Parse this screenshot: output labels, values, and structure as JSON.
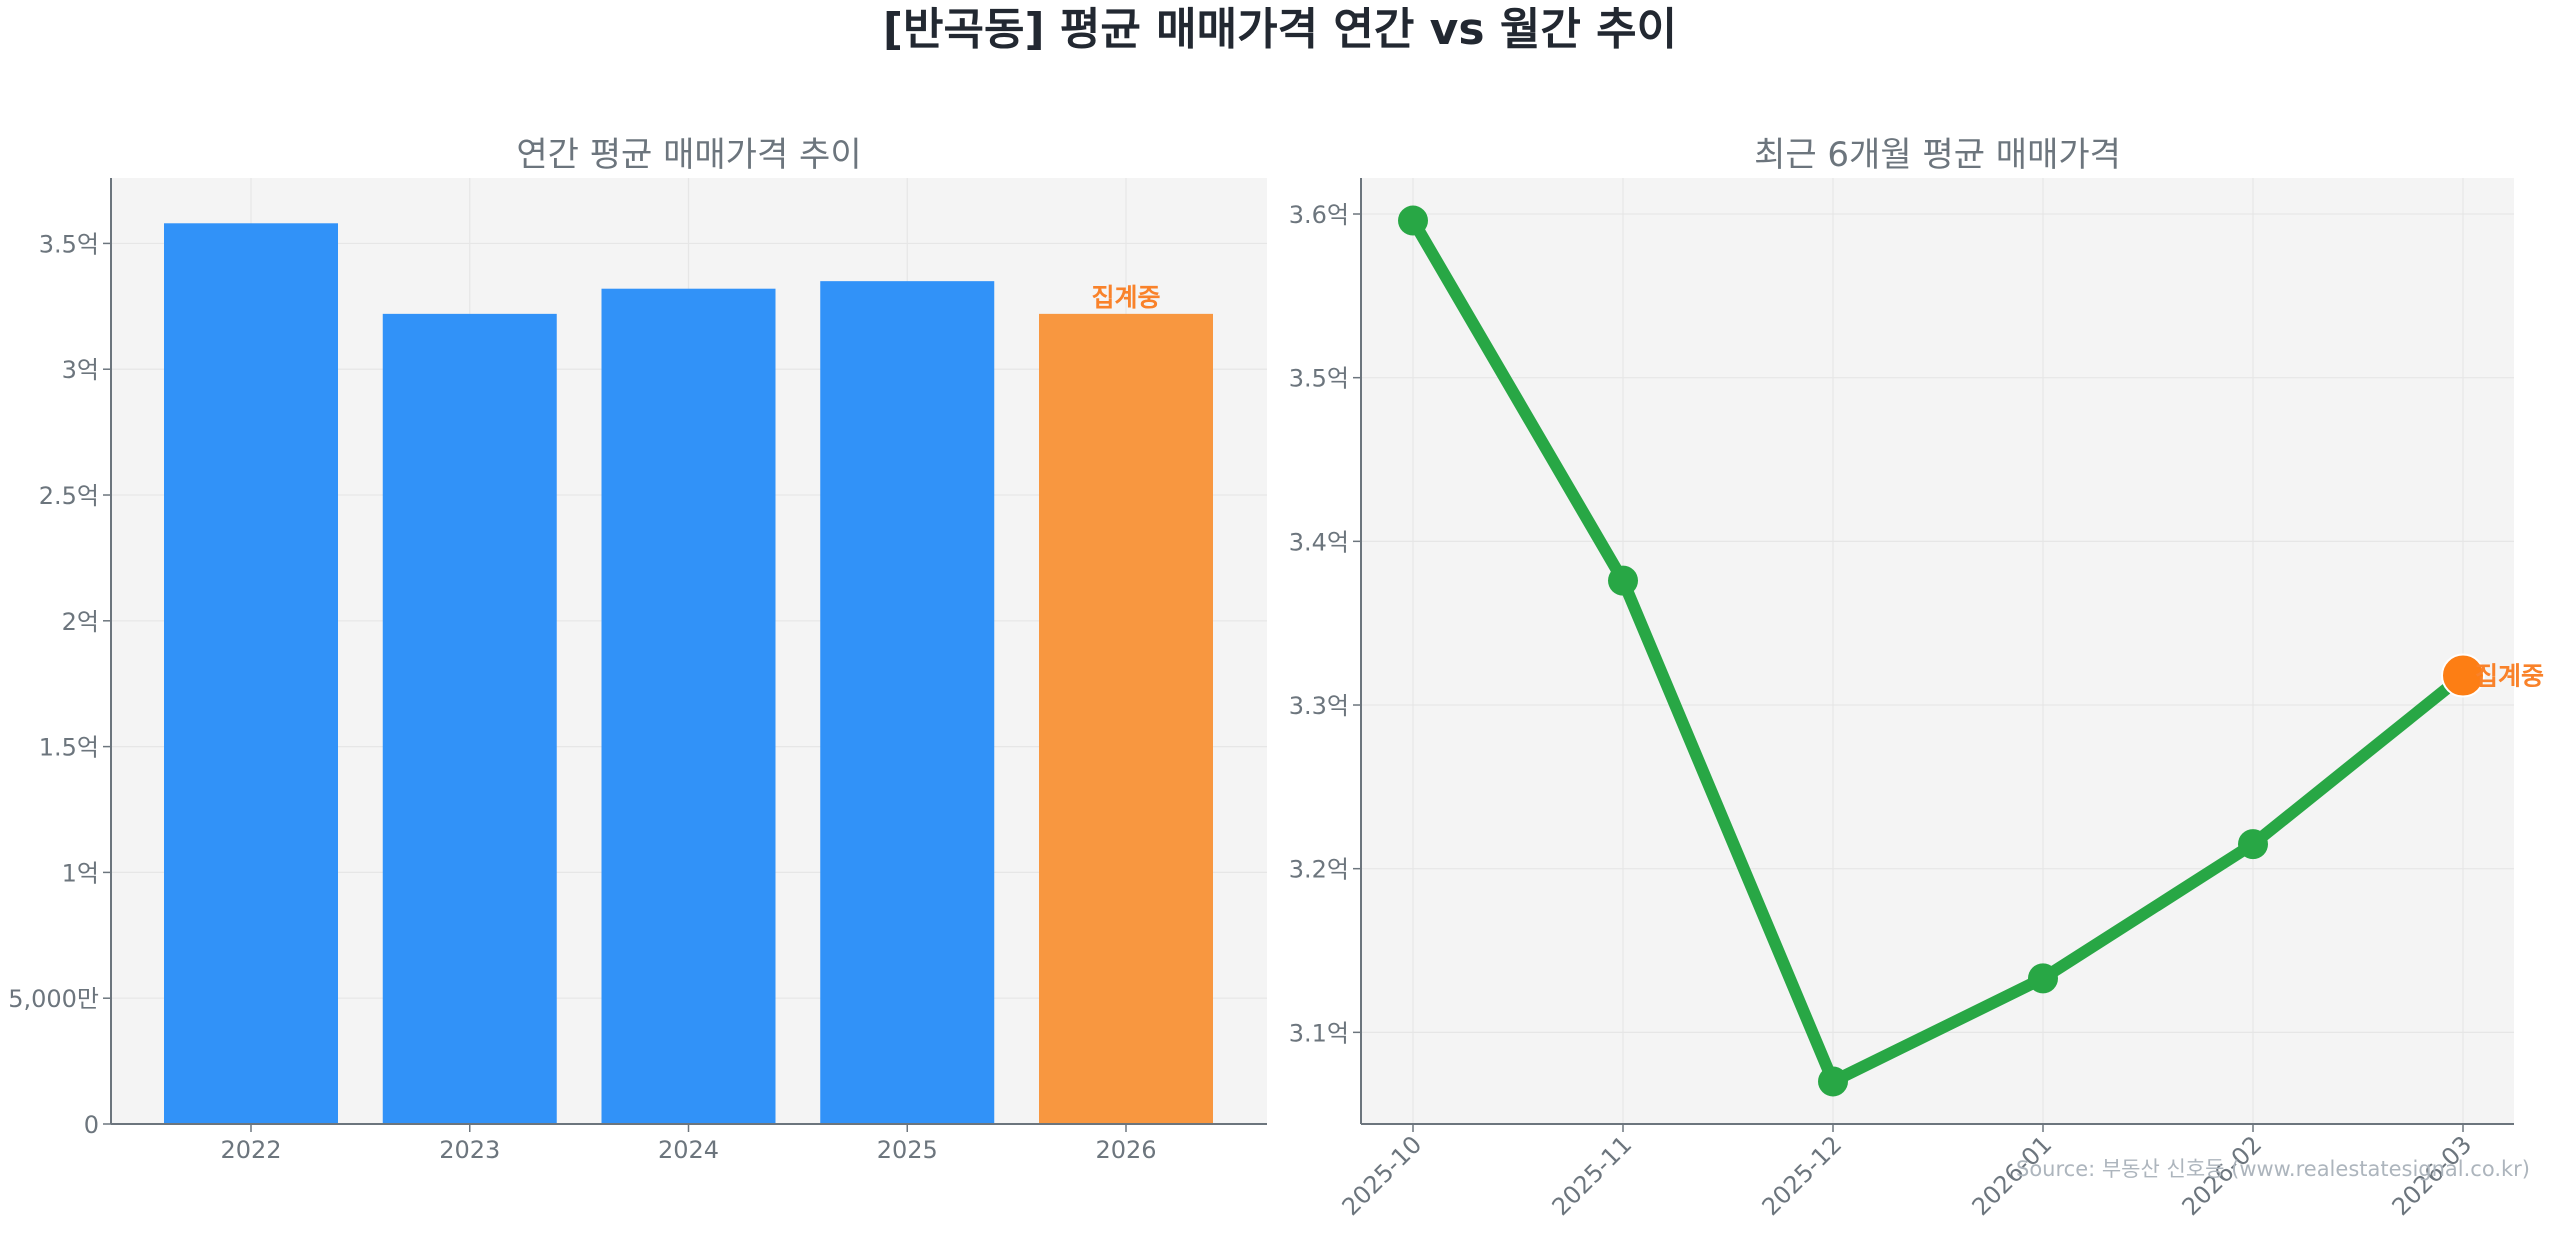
{
  "title": "[반곡동] 평균 매매가격 연간 vs 월간 추이",
  "source": "Source: 부동산 신호등 (www.realestatesignal.co.kr)",
  "colors": {
    "bar": "#3192f8",
    "bar_in_progress": "#f89740",
    "line": "#28a745",
    "marker_in_progress": "#fd7e14",
    "annotation": "#f9822a",
    "axes_bg": "#f4f4f4",
    "grid": "#e6e6e6",
    "spine": "#6c757d"
  },
  "chart_data": [
    {
      "type": "bar",
      "title": "연간 평균 매매가격 추이",
      "xlabel": "",
      "ylabel": "",
      "categories": [
        "2022",
        "2023",
        "2024",
        "2025",
        "2026"
      ],
      "values": [
        3.58,
        3.22,
        3.32,
        3.35,
        3.22
      ],
      "unit": "억",
      "ylim": [
        0,
        3.76
      ],
      "yticks": [
        0,
        0.5,
        1,
        1.5,
        2,
        2.5,
        3,
        3.5
      ],
      "ytick_labels": [
        "0",
        "5,000만",
        "1억",
        "1.5억",
        "2억",
        "2.5억",
        "3억",
        "3.5억"
      ],
      "highlight_index": 4,
      "annotations": [
        {
          "category": "2026",
          "text": "집계중"
        }
      ],
      "grid": true
    },
    {
      "type": "line",
      "title": "최근 6개월 평균 매매가격",
      "xlabel": "",
      "ylabel": "",
      "x": [
        "2025-10",
        "2025-11",
        "2025-12",
        "2026-01",
        "2026-02",
        "2026-03"
      ],
      "values": [
        3.596,
        3.376,
        3.07,
        3.133,
        3.215,
        3.318
      ],
      "unit": "억",
      "ylim": [
        3.044,
        3.622
      ],
      "yticks": [
        3.1,
        3.2,
        3.3,
        3.4,
        3.5,
        3.6
      ],
      "ytick_labels": [
        "3.1억",
        "3.2억",
        "3.3억",
        "3.4억",
        "3.5억",
        "3.6억"
      ],
      "highlight_index": 5,
      "annotations": [
        {
          "x": "2026-03",
          "text": "집계중"
        }
      ],
      "grid": true
    }
  ]
}
